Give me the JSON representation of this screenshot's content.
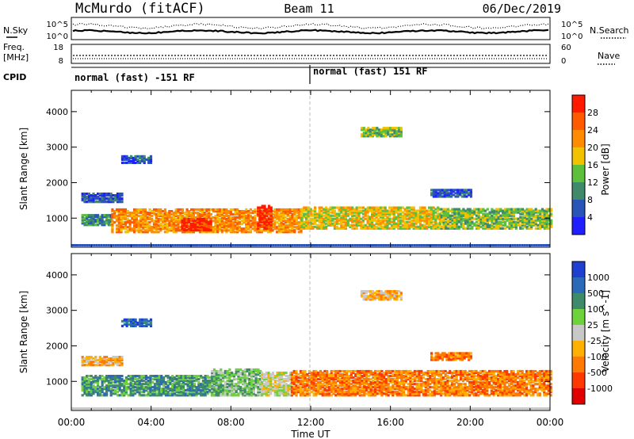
{
  "header": {
    "title": "McMurdo (fitACF)",
    "beam": "Beam 11",
    "date": "06/Dec/2019"
  },
  "noise_panel": {
    "left_label": "N.Sky",
    "right_label": "N.Search",
    "left_ticks": [
      "10^5",
      "10^0"
    ],
    "right_ticks": [
      "10^5",
      "10^0"
    ]
  },
  "freq_panel": {
    "left_label_top": "Freq.",
    "left_label_bottom": "[MHz]",
    "right_label": "Nave",
    "left_ticks": [
      "18",
      "8"
    ],
    "right_ticks": [
      "60",
      "0"
    ]
  },
  "cpid": {
    "label": "CPID",
    "segments": [
      "normal (fast) -151 RF",
      "normal (fast) 151 RF"
    ]
  },
  "axes": {
    "x_label": "Time UT",
    "x_ticks": [
      "00:00",
      "04:00",
      "08:00",
      "12:00",
      "16:00",
      "20:00",
      "00:00"
    ],
    "y_label": "Slant Range [km]",
    "y_ticks": [
      "1000",
      "2000",
      "3000",
      "4000"
    ]
  },
  "chart_data": [
    {
      "type": "heatmap",
      "name": "power",
      "x_range_hours": [
        0,
        24
      ],
      "y_range_km": [
        180,
        4600
      ],
      "colorbar": {
        "label": "Power [dB]",
        "ticks": [
          "4",
          "8",
          "12",
          "16",
          "20",
          "24",
          "28"
        ],
        "colors": [
          "#1f1fff",
          "#2a55b8",
          "#3f8a6a",
          "#5cc03c",
          "#f2c200",
          "#ff8c00",
          "#ff5a00",
          "#ff1a00"
        ]
      },
      "echo_regions": [
        {
          "t0": 0.5,
          "t1": 2.0,
          "r0": 800,
          "r1": 1100,
          "level": 2
        },
        {
          "t0": 2.0,
          "t1": 11.5,
          "r0": 600,
          "r1": 1250,
          "level": 5
        },
        {
          "t0": 11.5,
          "t1": 18.5,
          "r0": 700,
          "r1": 1300,
          "level": 4
        },
        {
          "t0": 18.5,
          "t1": 24.0,
          "r0": 700,
          "r1": 1250,
          "level": 3
        },
        {
          "t0": 5.5,
          "t1": 7.0,
          "r0": 650,
          "r1": 1000,
          "level": 7
        },
        {
          "t0": 9.3,
          "t1": 10.0,
          "r0": 700,
          "r1": 1350,
          "level": 7
        },
        {
          "t0": 14.5,
          "t1": 16.5,
          "r0": 3300,
          "r1": 3550,
          "level": 3
        },
        {
          "t0": 18.0,
          "t1": 20.0,
          "r0": 1600,
          "r1": 1800,
          "level": 1
        },
        {
          "t0": 0.5,
          "t1": 2.5,
          "r0": 1450,
          "r1": 1700,
          "level": 1
        },
        {
          "t0": 2.5,
          "t1": 4.0,
          "r0": 2550,
          "r1": 2750,
          "level": 1
        }
      ]
    },
    {
      "type": "heatmap",
      "name": "velocity",
      "x_range_hours": [
        0,
        24
      ],
      "y_range_km": [
        180,
        4600
      ],
      "colorbar": {
        "label": "Velocity [m s^-1]",
        "ticks": [
          "1000",
          "500",
          "100",
          "25",
          "-25",
          "-100",
          "-500",
          "-1000"
        ],
        "colors": [
          "#1f3fd0",
          "#2a6ab8",
          "#3f8a6a",
          "#6ed23c",
          "#c8c8c8",
          "#ffb000",
          "#ff7a00",
          "#ff3a00",
          "#e00000"
        ]
      },
      "echo_regions": [
        {
          "t0": 0.5,
          "t1": 7.5,
          "r0": 600,
          "r1": 1150,
          "level": 2
        },
        {
          "t0": 7.0,
          "t1": 9.5,
          "r0": 600,
          "r1": 1350,
          "level": 3
        },
        {
          "t0": 9.5,
          "t1": 11.0,
          "r0": 600,
          "r1": 1250,
          "level": 4
        },
        {
          "t0": 11.0,
          "t1": 24.0,
          "r0": 600,
          "r1": 1300,
          "level": 6
        },
        {
          "t0": 14.5,
          "t1": 16.5,
          "r0": 3300,
          "r1": 3550,
          "level": 5
        },
        {
          "t0": 18.0,
          "t1": 20.0,
          "r0": 1600,
          "r1": 1800,
          "level": 6
        },
        {
          "t0": 0.5,
          "t1": 2.5,
          "r0": 1450,
          "r1": 1700,
          "level": 5
        },
        {
          "t0": 2.5,
          "t1": 4.0,
          "r0": 2550,
          "r1": 2750,
          "level": 1
        }
      ]
    }
  ]
}
